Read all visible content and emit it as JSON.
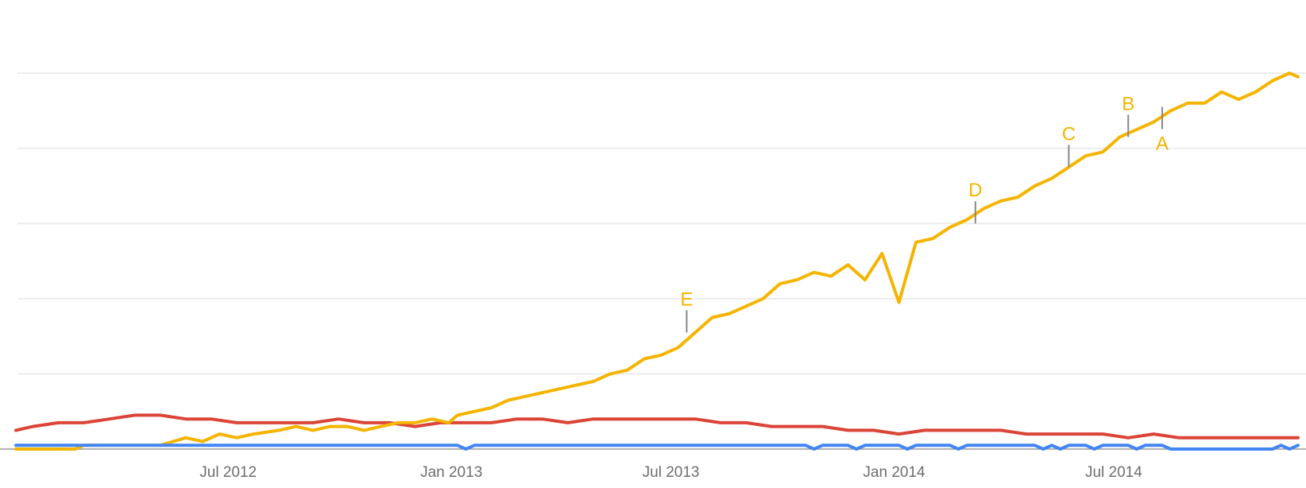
{
  "chart_data": {
    "type": "line",
    "title": "",
    "xlabel": "",
    "ylabel": "",
    "x_ticks": [
      "2012-07-01",
      "2013-01-01",
      "2013-07-01",
      "2014-01-01",
      "2014-07-01"
    ],
    "x_tick_labels": [
      "Jul 2012",
      "Jan 2013",
      "Jul 2013",
      "Jan 2014",
      "Jul 2014"
    ],
    "xlim": [
      "2012-01-08",
      "2014-11-30"
    ],
    "ylim": [
      0,
      100
    ],
    "y_gridlines": [
      20,
      40,
      60,
      80,
      100
    ],
    "y_tick_labels_shown": false,
    "grid": true,
    "legend": "none",
    "series": [
      {
        "color": "#f4b400",
        "points": [
          [
            "2012-01-08",
            0
          ],
          [
            "2012-02-26",
            0
          ],
          [
            "2012-03-04",
            1
          ],
          [
            "2012-05-06",
            1
          ],
          [
            "2012-05-27",
            3
          ],
          [
            "2012-06-10",
            2
          ],
          [
            "2012-06-24",
            4
          ],
          [
            "2012-07-08",
            3
          ],
          [
            "2012-07-22",
            4
          ],
          [
            "2012-08-12",
            5
          ],
          [
            "2012-08-26",
            6
          ],
          [
            "2012-09-09",
            5
          ],
          [
            "2012-09-23",
            6
          ],
          [
            "2012-10-07",
            6
          ],
          [
            "2012-10-21",
            5
          ],
          [
            "2012-11-04",
            6
          ],
          [
            "2012-11-18",
            7
          ],
          [
            "2012-12-02",
            7
          ],
          [
            "2012-12-16",
            8
          ],
          [
            "2012-12-30",
            7
          ],
          [
            "2013-01-06",
            9
          ],
          [
            "2013-01-20",
            10
          ],
          [
            "2013-02-03",
            11
          ],
          [
            "2013-02-17",
            13
          ],
          [
            "2013-03-03",
            14
          ],
          [
            "2013-03-17",
            15
          ],
          [
            "2013-03-31",
            16
          ],
          [
            "2013-04-14",
            17
          ],
          [
            "2013-04-28",
            18
          ],
          [
            "2013-05-12",
            20
          ],
          [
            "2013-05-26",
            21
          ],
          [
            "2013-06-09",
            24
          ],
          [
            "2013-06-23",
            25
          ],
          [
            "2013-07-07",
            27
          ],
          [
            "2013-07-21",
            31
          ],
          [
            "2013-08-04",
            35
          ],
          [
            "2013-08-18",
            36
          ],
          [
            "2013-09-01",
            38
          ],
          [
            "2013-09-15",
            40
          ],
          [
            "2013-09-29",
            44
          ],
          [
            "2013-10-13",
            45
          ],
          [
            "2013-10-27",
            47
          ],
          [
            "2013-11-10",
            46
          ],
          [
            "2013-11-24",
            49
          ],
          [
            "2013-12-08",
            45
          ],
          [
            "2013-12-22",
            52
          ],
          [
            "2014-01-05",
            39
          ],
          [
            "2014-01-19",
            55
          ],
          [
            "2014-02-02",
            56
          ],
          [
            "2014-02-16",
            59
          ],
          [
            "2014-03-02",
            61
          ],
          [
            "2014-03-16",
            64
          ],
          [
            "2014-03-30",
            66
          ],
          [
            "2014-04-13",
            67
          ],
          [
            "2014-04-27",
            70
          ],
          [
            "2014-05-11",
            72
          ],
          [
            "2014-05-25",
            75
          ],
          [
            "2014-06-08",
            78
          ],
          [
            "2014-06-22",
            79
          ],
          [
            "2014-07-06",
            83
          ],
          [
            "2014-07-20",
            85
          ],
          [
            "2014-08-03",
            87
          ],
          [
            "2014-08-17",
            90
          ],
          [
            "2014-08-31",
            92
          ],
          [
            "2014-09-14",
            92
          ],
          [
            "2014-09-28",
            95
          ],
          [
            "2014-10-12",
            93
          ],
          [
            "2014-10-26",
            95
          ],
          [
            "2014-11-09",
            98
          ],
          [
            "2014-11-23",
            100
          ],
          [
            "2014-11-30",
            99
          ]
        ]
      },
      {
        "color": "#db4437",
        "points": [
          [
            "2012-01-08",
            5
          ],
          [
            "2012-01-22",
            6
          ],
          [
            "2012-02-12",
            7
          ],
          [
            "2012-03-04",
            7
          ],
          [
            "2012-03-25",
            8
          ],
          [
            "2012-04-15",
            9
          ],
          [
            "2012-05-06",
            9
          ],
          [
            "2012-05-27",
            8
          ],
          [
            "2012-06-17",
            8
          ],
          [
            "2012-07-08",
            7
          ],
          [
            "2012-07-29",
            7
          ],
          [
            "2012-08-19",
            7
          ],
          [
            "2012-09-09",
            7
          ],
          [
            "2012-09-30",
            8
          ],
          [
            "2012-10-21",
            7
          ],
          [
            "2012-11-11",
            7
          ],
          [
            "2012-12-02",
            6
          ],
          [
            "2012-12-23",
            7
          ],
          [
            "2013-01-13",
            7
          ],
          [
            "2013-02-03",
            7
          ],
          [
            "2013-02-24",
            8
          ],
          [
            "2013-03-17",
            8
          ],
          [
            "2013-04-07",
            7
          ],
          [
            "2013-04-28",
            8
          ],
          [
            "2013-05-19",
            8
          ],
          [
            "2013-06-09",
            8
          ],
          [
            "2013-06-30",
            8
          ],
          [
            "2013-07-21",
            8
          ],
          [
            "2013-08-11",
            7
          ],
          [
            "2013-09-01",
            7
          ],
          [
            "2013-09-22",
            6
          ],
          [
            "2013-10-13",
            6
          ],
          [
            "2013-11-03",
            6
          ],
          [
            "2013-11-24",
            5
          ],
          [
            "2013-12-15",
            5
          ],
          [
            "2014-01-05",
            4
          ],
          [
            "2014-01-26",
            5
          ],
          [
            "2014-02-16",
            5
          ],
          [
            "2014-03-09",
            5
          ],
          [
            "2014-03-30",
            5
          ],
          [
            "2014-04-20",
            4
          ],
          [
            "2014-05-11",
            4
          ],
          [
            "2014-06-01",
            4
          ],
          [
            "2014-06-22",
            4
          ],
          [
            "2014-07-13",
            3
          ],
          [
            "2014-08-03",
            4
          ],
          [
            "2014-08-24",
            3
          ],
          [
            "2014-09-14",
            3
          ],
          [
            "2014-10-05",
            3
          ],
          [
            "2014-10-26",
            3
          ],
          [
            "2014-11-16",
            3
          ],
          [
            "2014-11-30",
            3
          ]
        ]
      },
      {
        "color": "#4285f4",
        "points": [
          [
            "2012-01-08",
            1
          ],
          [
            "2013-01-06",
            1
          ],
          [
            "2013-01-13",
            0
          ],
          [
            "2013-01-20",
            1
          ],
          [
            "2013-10-20",
            1
          ],
          [
            "2013-10-27",
            0
          ],
          [
            "2013-11-03",
            1
          ],
          [
            "2013-11-24",
            1
          ],
          [
            "2013-12-01",
            0
          ],
          [
            "2013-12-08",
            1
          ],
          [
            "2014-01-05",
            1
          ],
          [
            "2014-01-12",
            0
          ],
          [
            "2014-01-19",
            1
          ],
          [
            "2014-02-16",
            1
          ],
          [
            "2014-02-23",
            0
          ],
          [
            "2014-03-02",
            1
          ],
          [
            "2014-04-27",
            1
          ],
          [
            "2014-05-04",
            0
          ],
          [
            "2014-05-11",
            1
          ],
          [
            "2014-05-18",
            0
          ],
          [
            "2014-05-25",
            1
          ],
          [
            "2014-06-08",
            1
          ],
          [
            "2014-06-15",
            0
          ],
          [
            "2014-06-22",
            1
          ],
          [
            "2014-07-13",
            1
          ],
          [
            "2014-07-20",
            0
          ],
          [
            "2014-07-27",
            1
          ],
          [
            "2014-08-10",
            1
          ],
          [
            "2014-08-17",
            0
          ],
          [
            "2014-11-09",
            0
          ],
          [
            "2014-11-16",
            1
          ],
          [
            "2014-11-23",
            0
          ],
          [
            "2014-11-30",
            1
          ]
        ]
      }
    ],
    "annotations": [
      {
        "label": "A",
        "x": "2014-08-10",
        "y": 91,
        "placement": "below",
        "color": "#f4b400"
      },
      {
        "label": "B",
        "x": "2014-07-13",
        "y": 83,
        "placement": "above",
        "color": "#f4b400"
      },
      {
        "label": "C",
        "x": "2014-05-25",
        "y": 75,
        "placement": "above",
        "color": "#f4b400"
      },
      {
        "label": "D",
        "x": "2014-03-09",
        "y": 60,
        "placement": "above",
        "color": "#f4b400"
      },
      {
        "label": "E",
        "x": "2013-07-14",
        "y": 31,
        "placement": "above",
        "color": "#f4b400"
      }
    ]
  }
}
